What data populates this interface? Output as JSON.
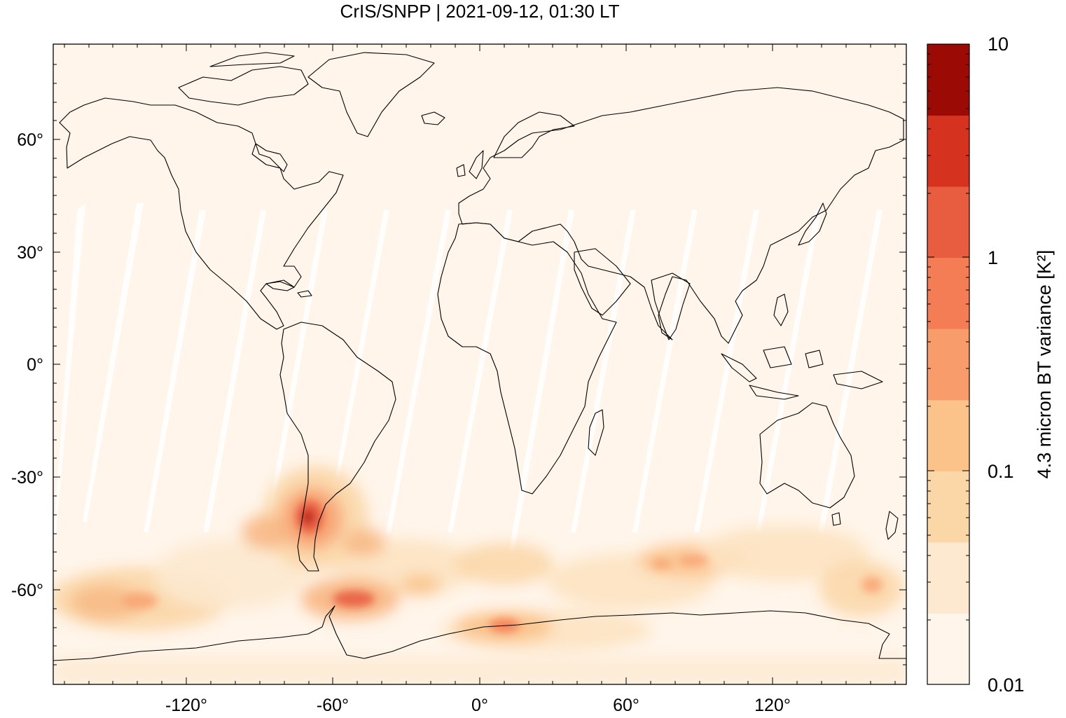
{
  "title": "CrIS/SNPP | 2021-09-12, 01:30 LT",
  "map": {
    "lon_ticks": [
      "-120°",
      "-60°",
      "0°",
      "60°",
      "120°"
    ],
    "lat_ticks": [
      "60°",
      "30°",
      "0°",
      "-30°",
      "-60°"
    ],
    "background_color": "#fff5ea",
    "coastline_color": "#000000"
  },
  "colorbar": {
    "label": "4.3 micron BT variance [K²]",
    "scale": "log",
    "range": [
      0.01,
      10
    ],
    "tick_labels": [
      "10",
      "1",
      "0.1",
      "0.01"
    ],
    "bands": [
      "#fff5ea",
      "#fde9cf",
      "#fbd6a7",
      "#fbc28a",
      "#f89c6b",
      "#f47d55",
      "#e85c40",
      "#d5321f",
      "#9b0a05"
    ]
  },
  "features": {
    "hotspots": [
      "Southern Andes / Patagonia",
      "Antarctic Peninsula / Drake Passage",
      "Dronning Maud Land coast",
      "Southern Ocean belt"
    ]
  }
}
